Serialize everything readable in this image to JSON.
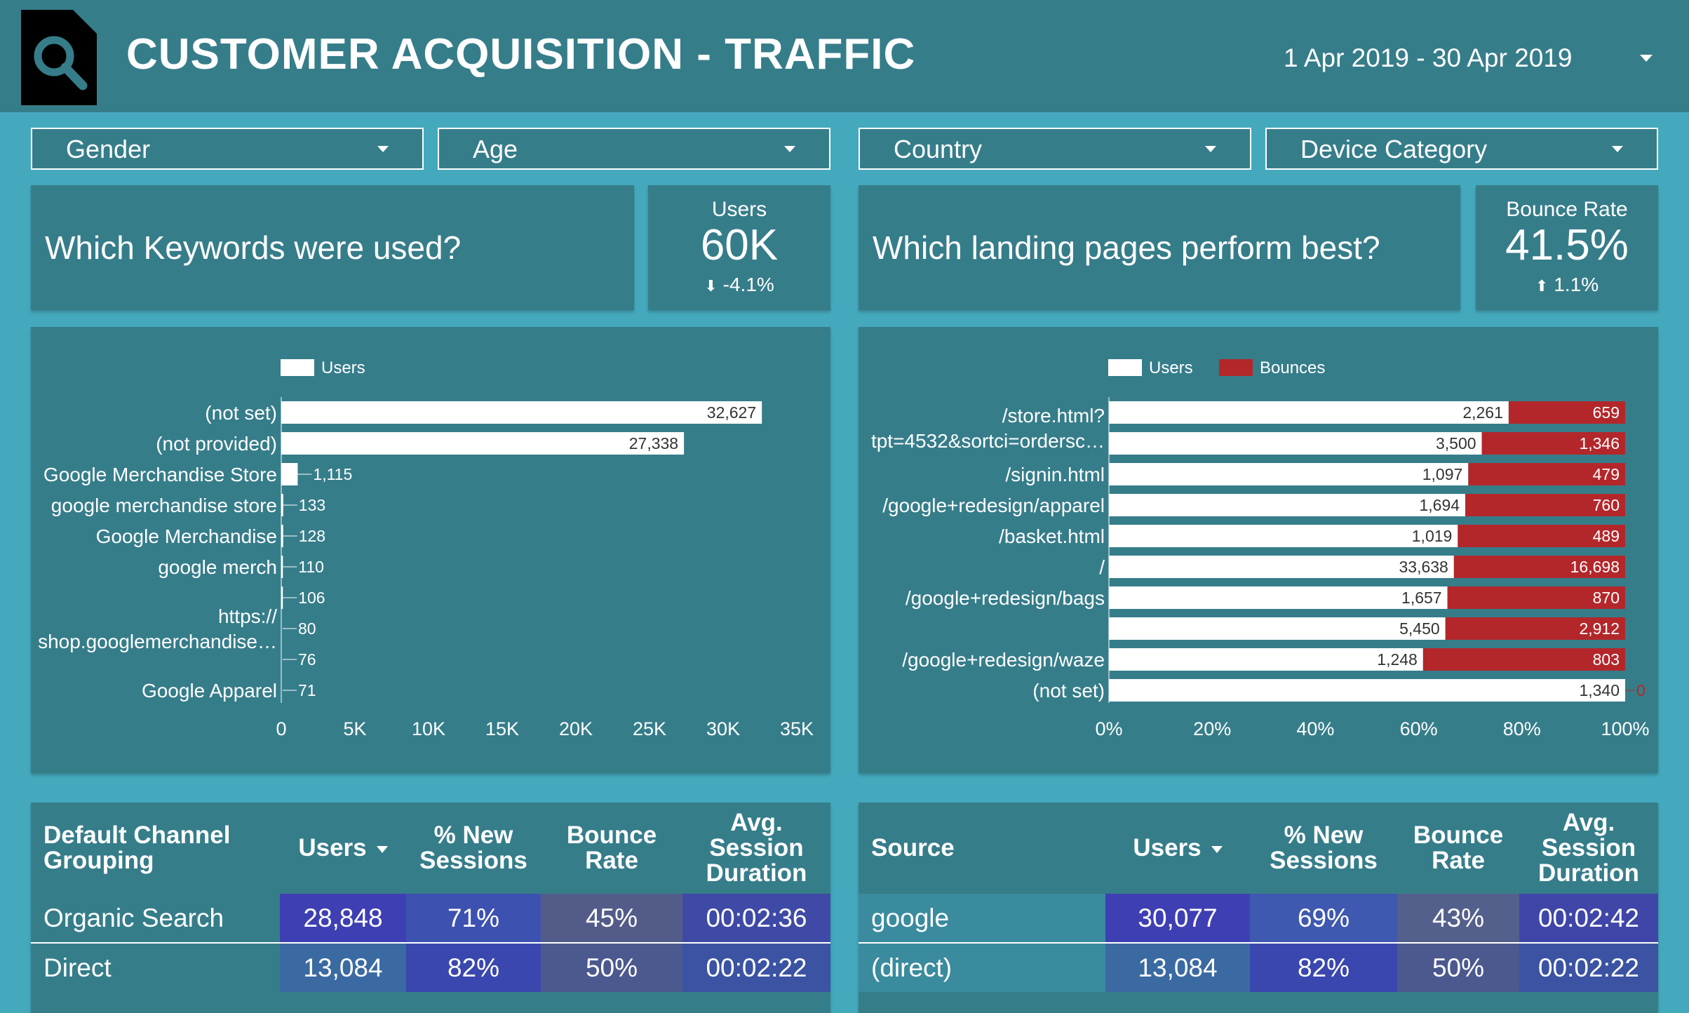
{
  "header": {
    "title": "CUSTOMER ACQUISITION - TRAFFIC",
    "date_range": "1 Apr 2019 - 30 Apr 2019"
  },
  "filters": [
    "Gender",
    "Age",
    "Country",
    "Device Category"
  ],
  "left": {
    "question": "Which Keywords were used?",
    "scorecard": {
      "label": "Users",
      "value": "60K",
      "delta": "-4.1%",
      "delta_direction": "down"
    }
  },
  "right": {
    "question": "Which landing pages perform best?",
    "scorecard": {
      "label": "Bounce Rate",
      "value": "41.5%",
      "delta": "1.1%",
      "delta_direction": "up"
    }
  },
  "chart_data": [
    {
      "type": "bar",
      "orientation": "horizontal",
      "legend": [
        "Users"
      ],
      "categories": [
        "(not set)",
        "(not provided)",
        "Google Merchandise Store",
        "google merchandise store",
        "Google Merchandise",
        "google merch",
        "",
        "https://\nshop.googlemerchandise…",
        "",
        "Google Apparel"
      ],
      "values": [
        32627,
        27338,
        1115,
        133,
        128,
        110,
        106,
        80,
        76,
        71
      ],
      "value_labels": [
        "32,627",
        "27,338",
        "1,115",
        "133",
        "128",
        "110",
        "106",
        "80",
        "76",
        "71"
      ],
      "xlim": [
        0,
        35000
      ],
      "xticks": [
        "0",
        "5K",
        "10K",
        "15K",
        "20K",
        "25K",
        "30K",
        "35K"
      ],
      "colors": {
        "users": "#ffffff"
      }
    },
    {
      "type": "bar",
      "orientation": "horizontal",
      "stacking": "percent",
      "legend": [
        "Users",
        "Bounces"
      ],
      "categories": [
        "/store.html?\ntpt=4532&sortci=ordersc…",
        "",
        "/signin.html",
        "/google+redesign/apparel",
        "/basket.html",
        "/",
        "/google+redesign/bags",
        "",
        "/google+redesign/waze",
        "(not set)"
      ],
      "series": [
        {
          "name": "Users",
          "values": [
            2261,
            3500,
            1097,
            1694,
            1019,
            33638,
            1657,
            5450,
            1248,
            1340
          ],
          "labels": [
            "2,261",
            "3,500",
            "1,097",
            "1,694",
            "1,019",
            "33,638",
            "1,657",
            "5,450",
            "1,248",
            "1,340"
          ]
        },
        {
          "name": "Bounces",
          "values": [
            659,
            1346,
            479,
            760,
            489,
            16698,
            870,
            2912,
            803,
            0
          ],
          "labels": [
            "659",
            "1,346",
            "479",
            "760",
            "489",
            "16,698",
            "870",
            "2,912",
            "803",
            "0"
          ]
        }
      ],
      "xticks": [
        "0%",
        "20%",
        "40%",
        "60%",
        "80%",
        "100%"
      ],
      "colors": {
        "users": "#ffffff",
        "bounces": "#b3272b"
      }
    }
  ],
  "tables": {
    "channel": {
      "headers": [
        "Default Channel Grouping",
        "Users",
        "% New Sessions",
        "Bounce Rate",
        "Avg. Session Duration"
      ],
      "rows": [
        [
          "Organic Search",
          "28,848",
          "71%",
          "45%",
          "00:02:36"
        ],
        [
          "Direct",
          "13,084",
          "82%",
          "50%",
          "00:02:22"
        ]
      ]
    },
    "source": {
      "headers": [
        "Source",
        "Users",
        "% New Sessions",
        "Bounce Rate",
        "Avg. Session Duration"
      ],
      "rows": [
        [
          "google",
          "30,077",
          "69%",
          "43%",
          "00:02:42"
        ],
        [
          "(direct)",
          "13,084",
          "82%",
          "50%",
          "00:02:22"
        ]
      ]
    }
  }
}
